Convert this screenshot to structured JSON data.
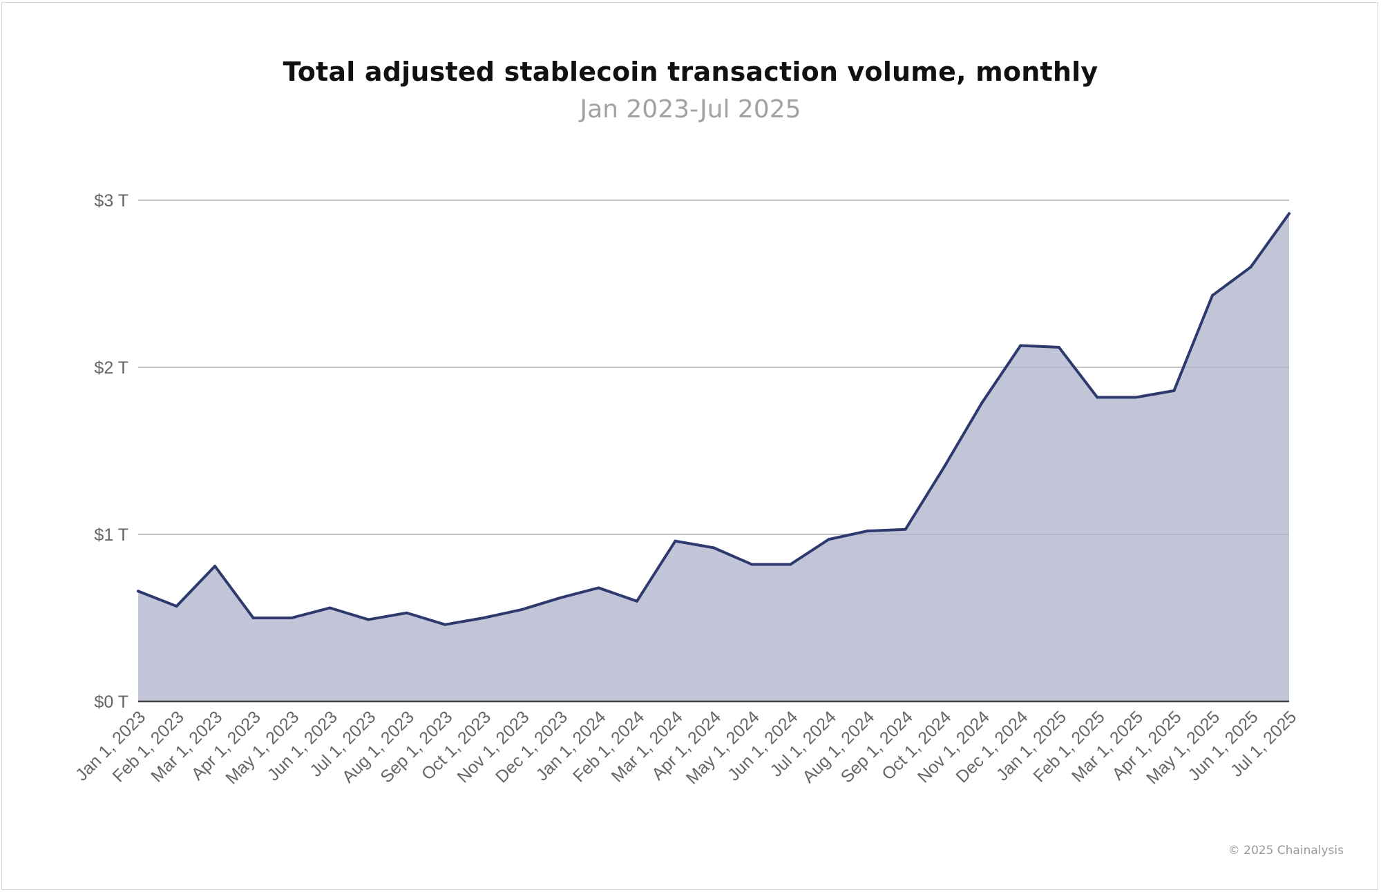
{
  "chart_data": {
    "type": "area",
    "title": "Total adjusted stablecoin transaction volume, monthly",
    "subtitle": "Jan 2023-Jul 2025",
    "xlabel": "",
    "ylabel": "",
    "unit": "trillion USD",
    "ylim": [
      0,
      3
    ],
    "yticks": [
      0,
      1,
      2,
      3
    ],
    "ytick_labels": [
      "$0 T",
      "$1 T",
      "$2 T",
      "$3 T"
    ],
    "grid": true,
    "legend": "none",
    "categories": [
      "Jan 1, 2023",
      "Feb 1, 2023",
      "Mar 1, 2023",
      "Apr 1, 2023",
      "May 1, 2023",
      "Jun 1, 2023",
      "Jul 1, 2023",
      "Aug 1, 2023",
      "Sep 1, 2023",
      "Oct 1, 2023",
      "Nov 1, 2023",
      "Dec 1, 2023",
      "Jan 1, 2024",
      "Feb 1, 2024",
      "Mar 1, 2024",
      "Apr 1, 2024",
      "May 1, 2024",
      "Jun 1, 2024",
      "Jul 1, 2024",
      "Aug 1, 2024",
      "Sep 1, 2024",
      "Oct 1, 2024",
      "Nov 1, 2024",
      "Dec 1, 2024",
      "Jan 1, 2025",
      "Feb 1, 2025",
      "Mar 1, 2025",
      "Apr 1, 2025",
      "May 1, 2025",
      "Jun 1, 2025",
      "Jul 1, 2025"
    ],
    "series": [
      {
        "name": "Adjusted stablecoin transaction volume",
        "values": [
          0.66,
          0.57,
          0.81,
          0.5,
          0.5,
          0.56,
          0.49,
          0.53,
          0.46,
          0.5,
          0.55,
          0.62,
          0.68,
          0.6,
          0.96,
          0.92,
          0.82,
          0.82,
          0.97,
          1.02,
          1.03,
          1.4,
          1.79,
          2.13,
          2.12,
          1.82,
          1.82,
          1.86,
          2.43,
          2.6,
          2.92
        ]
      }
    ],
    "colors": {
      "line": "#2e3a6e",
      "area": "#bfc2d6",
      "grid": "#d2d2d2",
      "axis": "#444444"
    }
  },
  "footer": {
    "copyright": "© 2025 Chainalysis"
  }
}
